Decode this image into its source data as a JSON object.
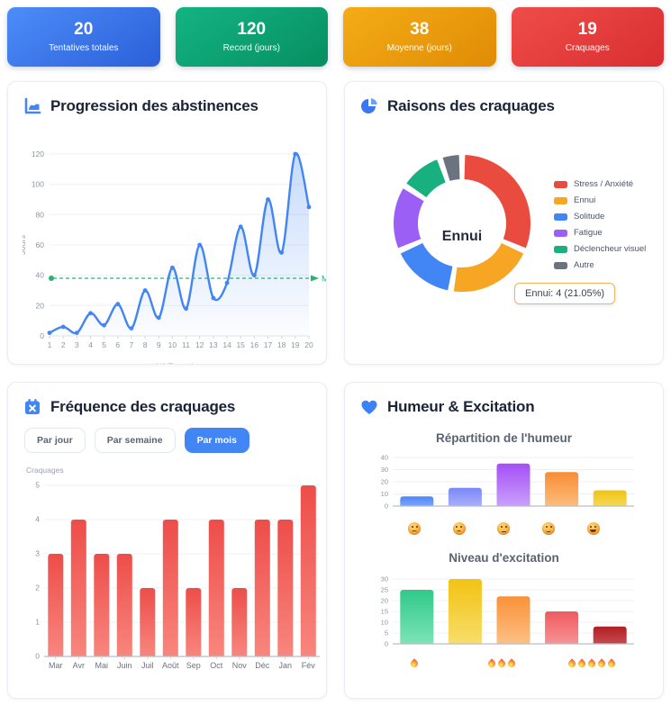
{
  "stats": {
    "cards": [
      {
        "value": "20",
        "label": "Tentatives totales",
        "gradient_from": "#4c8df8",
        "gradient_to": "#2b5fd9"
      },
      {
        "value": "120",
        "label": "Record (jours)",
        "gradient_from": "#13b483",
        "gradient_to": "#078e60"
      },
      {
        "value": "38",
        "label": "Moyenne (jours)",
        "gradient_from": "#f4ac16",
        "gradient_to": "#e08c05"
      },
      {
        "value": "19",
        "label": "Craquages",
        "gradient_from": "#ef4d49",
        "gradient_to": "#d92e31"
      }
    ]
  },
  "panels": {
    "progression": {
      "title": "Progression des abstinences"
    },
    "raisons": {
      "title": "Raisons des craquages",
      "center_label": "Ennui",
      "tooltip": "Ennui: 4 (21.05%)"
    },
    "frequence": {
      "title": "Fréquence des craquages",
      "buttons": [
        {
          "label": "Par jour",
          "active": false
        },
        {
          "label": "Par semaine",
          "active": false
        },
        {
          "label": "Par mois",
          "active": true
        }
      ],
      "axis_caption": "Craquages"
    },
    "humeur": {
      "title": "Humeur & Excitation",
      "subtitle_mood": "Répartition de l'humeur",
      "subtitle_excitation": "Niveau d'excitation"
    }
  },
  "chart_data": [
    {
      "id": "abstinence",
      "type": "line",
      "title": "Progression des abstinences",
      "x": [
        1,
        2,
        3,
        4,
        5,
        6,
        7,
        8,
        9,
        10,
        11,
        12,
        13,
        14,
        15,
        16,
        17,
        18,
        19,
        20
      ],
      "values": [
        2,
        6,
        2,
        15,
        7,
        21,
        5,
        30,
        12,
        45,
        18,
        60,
        25,
        35,
        72,
        40,
        90,
        55,
        120,
        85
      ],
      "xlabel": "N° Tentative",
      "ylabel": "Jours",
      "ylim": [
        0,
        120
      ],
      "yticks": [
        0,
        20,
        40,
        60,
        80,
        100,
        120
      ],
      "line_color": "#4285f4",
      "fill_color": "#4285f4",
      "grid": true,
      "average_line": {
        "value": 38,
        "label": "Moyenne",
        "color": "#27b376"
      }
    },
    {
      "id": "raisons",
      "type": "doughnut",
      "labels": [
        "Stress / Anxiété",
        "Ennui",
        "Solitude",
        "Fatigue",
        "Déclencheur visuel",
        "Autre"
      ],
      "values": [
        6,
        4,
        3,
        3,
        2,
        1
      ],
      "colors": [
        "#e94b3f",
        "#f6a623",
        "#4285f4",
        "#9b5ff6",
        "#17b07e",
        "#6b7280"
      ],
      "center_label": "Ennui",
      "tooltip_text": "Ennui: 4 (21.05%)",
      "tooltip_border": "#f2b45c",
      "legend_position": "right"
    },
    {
      "id": "frequence",
      "type": "bar",
      "categories": [
        "Mar",
        "Avr",
        "Mai",
        "Juin",
        "Juil",
        "Août",
        "Sep",
        "Oct",
        "Nov",
        "Déc",
        "Jan",
        "Fév"
      ],
      "values": [
        3,
        4,
        3,
        3,
        2,
        4,
        2,
        4,
        2,
        4,
        4,
        5
      ],
      "ylabel": "Craquages",
      "ylim": [
        0,
        5
      ],
      "yticks": [
        0,
        1,
        2,
        3,
        4,
        5
      ],
      "bar_gradient": [
        "#ee4d49",
        "#f8867e"
      ]
    },
    {
      "id": "humeur",
      "type": "bar",
      "title": "Répartition de l'humeur",
      "categories": [
        "😖",
        "😟",
        "😐",
        "🙂",
        "😄"
      ],
      "face_types": [
        "distressed",
        "worried",
        "neutral",
        "smile",
        "grin"
      ],
      "values": [
        8,
        15,
        35,
        28,
        13
      ],
      "ylim": [
        0,
        40
      ],
      "yticks": [
        0,
        10,
        20,
        30,
        40
      ],
      "colors": [
        [
          "#4f86f7",
          "#7ba5f9"
        ],
        [
          "#7b88f8",
          "#a8affa"
        ],
        [
          "#a44ff5",
          "#c9a0fb"
        ],
        [
          "#f98c33",
          "#fbbd7e"
        ],
        [
          "#f1c410",
          "#f6d75c"
        ]
      ]
    },
    {
      "id": "excitation",
      "type": "bar",
      "title": "Niveau d'excitation",
      "categories": [
        "🔥",
        "",
        "🔥🔥🔥",
        "",
        "🔥🔥🔥🔥🔥"
      ],
      "flame_counts": [
        1,
        0,
        3,
        0,
        5
      ],
      "values": [
        25,
        30,
        22,
        15,
        8
      ],
      "ylim": [
        0,
        30
      ],
      "yticks": [
        0,
        5,
        10,
        15,
        20,
        25,
        30
      ],
      "colors": [
        [
          "#2fc98a",
          "#7ee3b6"
        ],
        [
          "#f2c313",
          "#f8dd6b"
        ],
        [
          "#fb9138",
          "#fcc084"
        ],
        [
          "#f05a5e",
          "#f59396"
        ],
        [
          "#b01f24",
          "#c94a4e"
        ]
      ]
    }
  ]
}
